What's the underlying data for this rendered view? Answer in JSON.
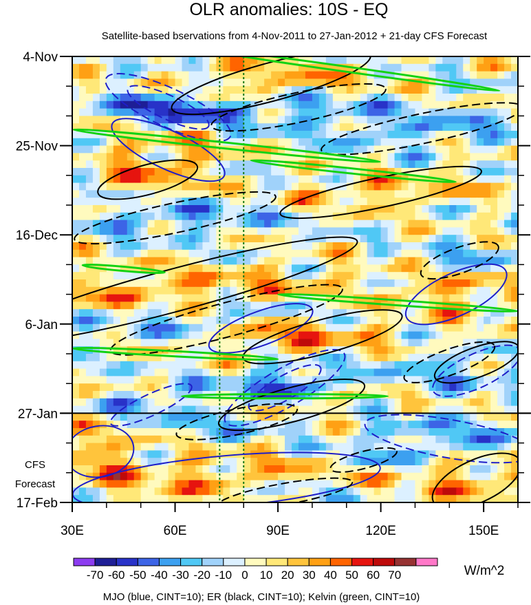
{
  "chart_data": {
    "type": "heatmap",
    "title": "OLR anomalies: 10S - EQ",
    "subtitle": "Satellite-based bservations from 4-Nov-2011 to 27-Jan-2012 + 21-day CFS Forecast",
    "xlim": [
      30,
      160
    ],
    "x_ticks": [
      {
        "value": 30,
        "label": "30E"
      },
      {
        "value": 60,
        "label": "60E"
      },
      {
        "value": 90,
        "label": "90E"
      },
      {
        "value": 120,
        "label": "120E"
      },
      {
        "value": 150,
        "label": "150E"
      }
    ],
    "ylim_days": [
      0,
      105
    ],
    "y_ticks": [
      {
        "day": 0,
        "label": "4-Nov"
      },
      {
        "day": 21,
        "label": "25-Nov"
      },
      {
        "day": 42,
        "label": "16-Dec"
      },
      {
        "day": 63,
        "label": "6-Jan"
      },
      {
        "day": 84,
        "label": "27-Jan"
      },
      {
        "day": 105,
        "label": "17-Feb"
      }
    ],
    "forecast_start_day": 84,
    "forecast_label_1": "CFS",
    "forecast_label_2": "Forecast",
    "reference_lines_lon": [
      73,
      80
    ],
    "colorbar": {
      "unit": "W/m^2",
      "levels": [
        -70,
        -60,
        -50,
        -40,
        -30,
        -20,
        -10,
        0,
        10,
        20,
        30,
        40,
        50,
        60,
        70
      ],
      "level_labels": [
        "-70",
        "-60",
        "-50",
        "-40",
        "-30",
        "-20",
        "-10",
        "0",
        "10",
        "20",
        "30",
        "40",
        "50",
        "60",
        "70"
      ],
      "colors": [
        "#8c3cf0",
        "#1e1e96",
        "#2832c8",
        "#3c64e6",
        "#3ca0f0",
        "#50c8f5",
        "#a0d2fa",
        "#dcf0ff",
        "#fffabe",
        "#ffe878",
        "#ffc43c",
        "#ffa014",
        "#ff6400",
        "#e6140f",
        "#be0a0a",
        "#963232",
        "#ff78c8"
      ]
    },
    "caption": "MJO (blue, CINT=10); ER (black, CINT=10); Kelvin (green, CINT=10)",
    "contour_colors": {
      "mjo": "#1e1ec8",
      "er": "#000000",
      "kelvin": "#14d214",
      "reference": "#147814"
    },
    "features": [
      {
        "type": "mjo",
        "lon": 58,
        "day": 12,
        "rx": 20,
        "ry": 4.5,
        "angle": 25,
        "sign": -1
      },
      {
        "type": "mjo",
        "lon": 58,
        "day": 12,
        "rx": 13,
        "ry": 2.8,
        "angle": 25,
        "sign": -1
      },
      {
        "type": "mjo",
        "lon": 58,
        "day": 22,
        "rx": 18,
        "ry": 4.5,
        "angle": 25,
        "sign": 1
      },
      {
        "type": "mjo",
        "lon": 92,
        "day": 78,
        "rx": 20,
        "ry": 4.5,
        "angle": -30,
        "sign": -1
      },
      {
        "type": "mjo",
        "lon": 92,
        "day": 78,
        "rx": 12,
        "ry": 2.8,
        "angle": -30,
        "sign": -1
      },
      {
        "type": "mjo",
        "lon": 53,
        "day": 82,
        "rx": 13,
        "ry": 2.5,
        "angle": -25,
        "sign": -1
      },
      {
        "type": "mjo",
        "lon": 85,
        "day": 64,
        "rx": 16,
        "ry": 4,
        "angle": -20,
        "sign": 1
      },
      {
        "type": "mjo",
        "lon": 142,
        "day": 56,
        "rx": 16,
        "ry": 5,
        "angle": -25,
        "sign": 1
      },
      {
        "type": "mjo",
        "lon": 148,
        "day": 74,
        "rx": 14,
        "ry": 4,
        "angle": -25,
        "sign": -1
      },
      {
        "type": "mjo",
        "lon": 140,
        "day": 90,
        "rx": 25,
        "ry": 4.5,
        "angle": 10,
        "sign": -1
      },
      {
        "type": "mjo",
        "lon": 75,
        "day": 100,
        "rx": 45,
        "ry": 6,
        "angle": -5,
        "sign": 1
      },
      {
        "type": "mjo",
        "lon": 38,
        "day": 93,
        "rx": 10,
        "ry": 6,
        "angle": -10,
        "sign": 1
      },
      {
        "type": "er",
        "lon": 52,
        "day": 29,
        "rx": 15,
        "ry": 3.5,
        "angle": -15,
        "sign": 1
      },
      {
        "type": "er",
        "lon": 60,
        "day": 38,
        "rx": 30,
        "ry": 3.5,
        "angle": -12,
        "sign": -1
      },
      {
        "type": "er",
        "lon": 96,
        "day": 12,
        "rx": 26,
        "ry": 3.5,
        "angle": -12,
        "sign": -1
      },
      {
        "type": "er",
        "lon": 88,
        "day": 6,
        "rx": 30,
        "ry": 4.5,
        "angle": -15,
        "sign": 1
      },
      {
        "type": "er",
        "lon": 132,
        "day": 17,
        "rx": 30,
        "ry": 3.5,
        "angle": -12,
        "sign": -1
      },
      {
        "type": "er",
        "lon": 120,
        "day": 32,
        "rx": 30,
        "ry": 3.5,
        "angle": -12,
        "sign": 1
      },
      {
        "type": "er",
        "lon": 60,
        "day": 55,
        "rx": 55,
        "ry": 5,
        "angle": -15,
        "sign": 1
      },
      {
        "type": "er",
        "lon": 75,
        "day": 62,
        "rx": 35,
        "ry": 4,
        "angle": -15,
        "sign": -1
      },
      {
        "type": "er",
        "lon": 103,
        "day": 66,
        "rx": 24,
        "ry": 4,
        "angle": -15,
        "sign": 1
      },
      {
        "type": "er",
        "lon": 94,
        "day": 82,
        "rx": 22,
        "ry": 4,
        "angle": -15,
        "sign": 1
      },
      {
        "type": "er",
        "lon": 78,
        "day": 86,
        "rx": 18,
        "ry": 3,
        "angle": -12,
        "sign": -1
      },
      {
        "type": "er",
        "lon": 115,
        "day": 95,
        "rx": 10,
        "ry": 2,
        "angle": -15,
        "sign": -1
      },
      {
        "type": "er",
        "lon": 148,
        "day": 72,
        "rx": 13,
        "ry": 3.5,
        "angle": -20,
        "sign": 1
      },
      {
        "type": "er",
        "lon": 140,
        "day": 72,
        "rx": 14,
        "ry": 3,
        "angle": -20,
        "sign": -1
      },
      {
        "type": "er",
        "lon": 143,
        "day": 48,
        "rx": 12,
        "ry": 3,
        "angle": -20,
        "sign": -1
      },
      {
        "type": "er",
        "lon": 92,
        "day": 103,
        "rx": 20,
        "ry": 2.5,
        "angle": -10,
        "sign": -1
      },
      {
        "type": "er",
        "lon": 148,
        "day": 100,
        "rx": 14,
        "ry": 5,
        "angle": -25,
        "sign": 1
      },
      {
        "type": "kelvin",
        "lon": 110,
        "day": 3,
        "rx": 45,
        "ry": 0.6,
        "angle": 8,
        "sign": 1
      },
      {
        "type": "kelvin",
        "lon": 75,
        "day": 21,
        "rx": 45,
        "ry": 0.7,
        "angle": 6,
        "sign": 1
      },
      {
        "type": "kelvin",
        "lon": 112,
        "day": 27,
        "rx": 30,
        "ry": 0.6,
        "angle": 6,
        "sign": 1
      },
      {
        "type": "kelvin",
        "lon": 125,
        "day": 58,
        "rx": 35,
        "ry": 0.6,
        "angle": 4,
        "sign": 1
      },
      {
        "type": "kelvin",
        "lon": 60,
        "day": 70,
        "rx": 30,
        "ry": 0.6,
        "angle": 3,
        "sign": 1
      },
      {
        "type": "kelvin",
        "lon": 92,
        "day": 80,
        "rx": 30,
        "ry": 0.5,
        "angle": 0,
        "sign": 1
      },
      {
        "type": "kelvin",
        "lon": 45,
        "day": 50,
        "rx": 12,
        "ry": 0.5,
        "angle": 5,
        "sign": 1
      }
    ]
  }
}
